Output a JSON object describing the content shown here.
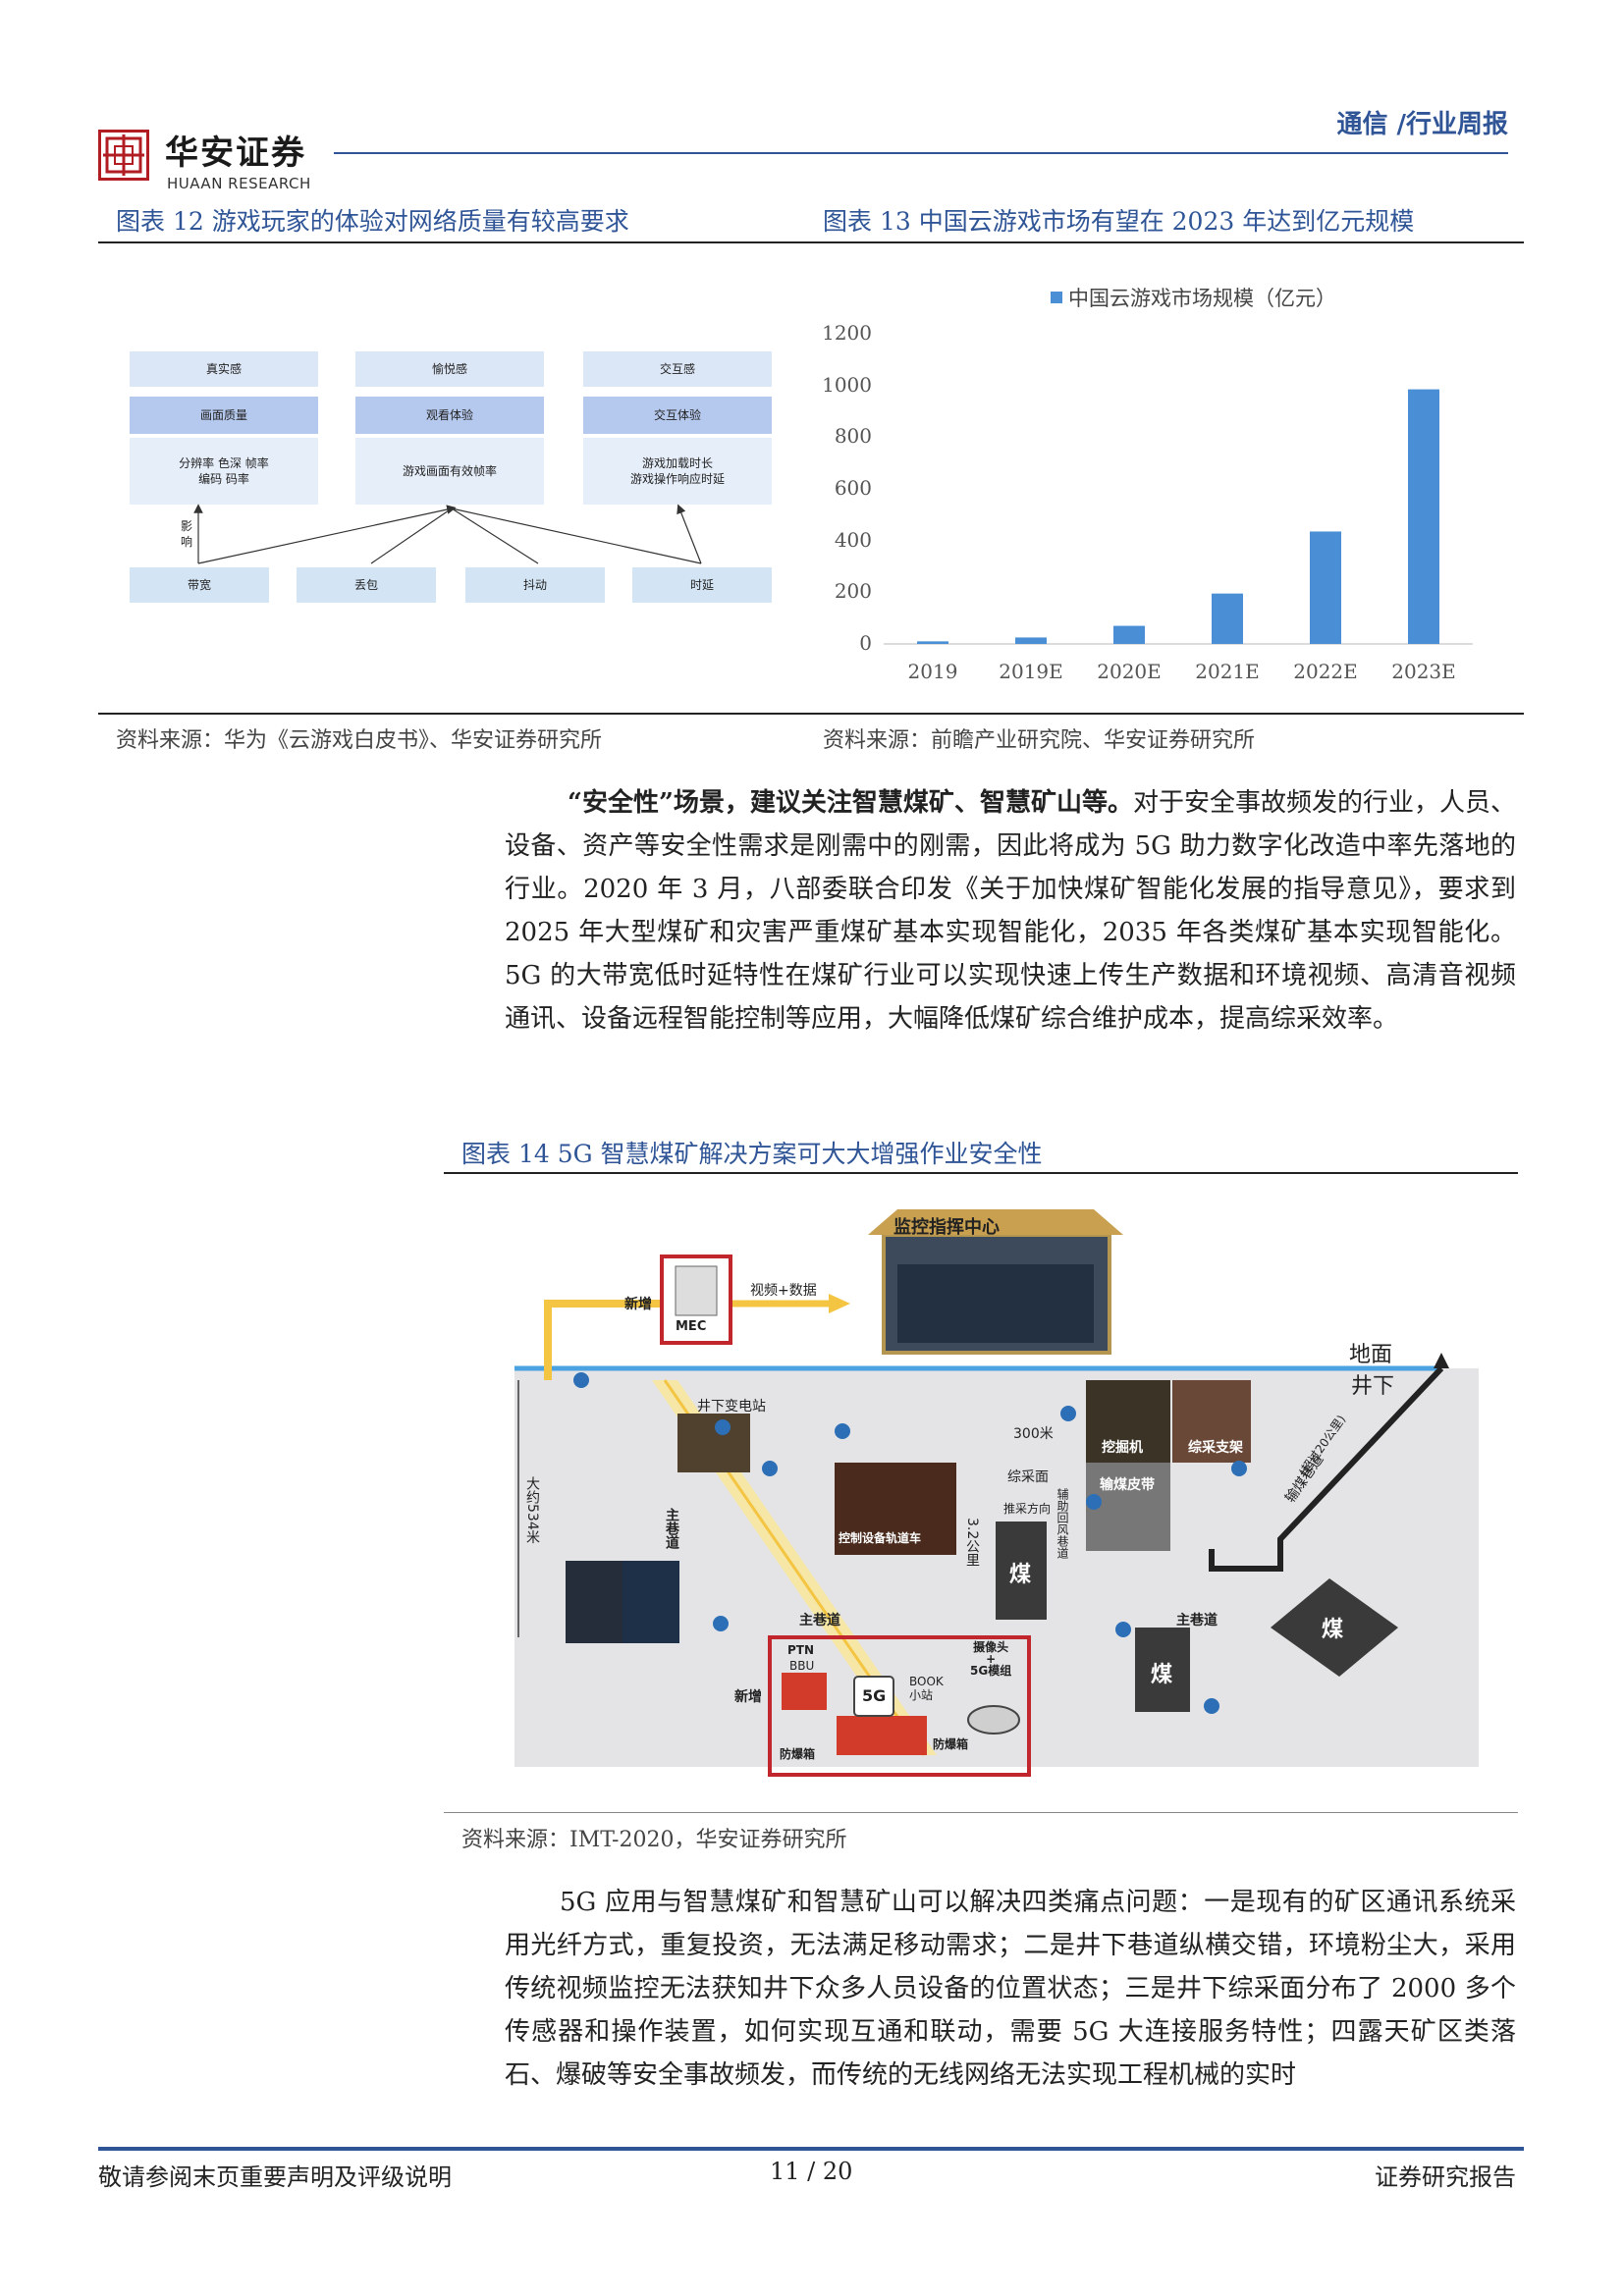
{
  "header": {
    "company_cn": "华安证券",
    "company_en": "HUAAN RESEARCH",
    "category": "通信 /行业周报"
  },
  "fig12": {
    "title": "图表 12 游戏玩家的体验对网络质量有较高要求",
    "source": "资料来源：华为《云游戏白皮书》、华安证券研究所",
    "boxes": {
      "top": [
        "真实感",
        "愉悦感",
        "交互感"
      ],
      "mid": [
        "画面质量",
        "观看体验",
        "交互体验"
      ],
      "detail": [
        "分辨率 色深 帧率\n编码 码率",
        "游戏画面有效帧率",
        "游戏加载时长\n游戏操作响应时延"
      ],
      "influence": "影\n响",
      "bottom": [
        "带宽",
        "丢包",
        "抖动",
        "时延"
      ]
    }
  },
  "fig13": {
    "title": "图表 13 中国云游戏市场有望在 2023 年达到亿元规模",
    "source": "资料来源：前瞻产业研究院、华安证券研究所"
  },
  "chart_data": {
    "type": "bar",
    "categories": [
      "2019",
      "2019E",
      "2020E",
      "2021E",
      "2022E",
      "2023E"
    ],
    "series": [
      {
        "name": "中国云游戏市场规模（亿元）",
        "values": [
          10,
          25,
          70,
          195,
          435,
          985
        ]
      }
    ],
    "ylim": [
      0,
      1200
    ],
    "yticks": [
      0,
      200,
      400,
      600,
      800,
      1000,
      1200
    ],
    "legend": "top",
    "color": "#4a8fd6"
  },
  "para1": {
    "lead": "“安全性”场景，建议关注智慧煤矿、智慧矿山等。",
    "text": "对于安全事故频发的行业，人员、设备、资产等安全性需求是刚需中的刚需，因此将成为 5G 助力数字化改造中率先落地的行业。2020 年 3 月，八部委联合印发《关于加快煤矿智能化发展的指导意见》，要求到 2025 年大型煤矿和灾害严重煤矿基本实现智能化，2035 年各类煤矿基本实现智能化。5G 的大带宽低时延特性在煤矿行业可以实现快速上传生产数据和环境视频、高清音视频通讯、设备远程智能控制等应用，大幅降低煤矿综合维护成本，提高综采效率。"
  },
  "fig14": {
    "title": "图表 14 5G 智慧煤矿解决方案可大大增强作业安全性",
    "source": "资料来源：IMT-2020，华安证券研究所",
    "labels": {
      "new1": "新增",
      "mec": "MEC",
      "video": "视频+数据",
      "center": "监控指挥中心",
      "ground": "地面",
      "underground": "井下",
      "substation": "井下变电站",
      "depth": "大约534米",
      "main_road1": "主巷道",
      "control": "控制设备轨道车",
      "dist300": "300米",
      "mining_face": "综采面",
      "direction": "推采方向",
      "dist32": "3.2公里",
      "coal1": "煤",
      "excavator": "挖掘机",
      "support": "综采支架",
      "conveyor": "输煤皮带",
      "return_air": "辅助回风巷道",
      "belt_road": "输煤巷道",
      "over20": "(超过20公里)",
      "main_road2": "主巷道",
      "main_road3": "主巷道",
      "ptn": "PTN",
      "bbu": "BBU",
      "new2": "新增",
      "fiveg": "5G",
      "book": "BOOK\n小站",
      "camera": "摄像头\n+\n5G模组",
      "explosion1": "防爆箱",
      "explosion2": "防爆箱",
      "coal2": "煤",
      "coal3": "煤"
    }
  },
  "para2": {
    "text": "5G 应用与智慧煤矿和智慧矿山可以解决四类痛点问题：一是现有的矿区通讯系统采用光纤方式，重复投资，无法满足移动需求；二是井下巷道纵横交错，环境粉尘大，采用传统视频监控无法获知井下众多人员设备的位置状态；三是井下综采面分布了 2000 多个传感器和操作装置，如何实现互通和联动，需要 5G 大连接服务特性；四露天矿区类落石、爆破等安全事故频发，而传统的无线网络无法实现工程机械的实时"
  },
  "footer": {
    "left": "敬请参阅末页重要声明及评级说明",
    "page": "11 / 20",
    "right": "证券研究报告"
  }
}
